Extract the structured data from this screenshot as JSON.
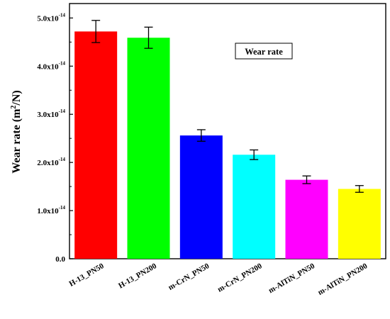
{
  "chart_data": {
    "type": "bar",
    "title": "",
    "xlabel": "",
    "ylabel": {
      "main": "Wear rate (m",
      "sup": "2",
      "tail": "/N)"
    },
    "ylim": [
      0,
      5.3
    ],
    "tick_values": [
      0.0,
      1.0,
      2.0,
      3.0,
      4.0,
      5.0
    ],
    "tick_labels": [
      {
        "base": "0.0",
        "exp": ""
      },
      {
        "base": "1.0x10",
        "exp": "-14"
      },
      {
        "base": "2.0x10",
        "exp": "-14"
      },
      {
        "base": "3.0x10",
        "exp": "-14"
      },
      {
        "base": "4.0x10",
        "exp": "-14"
      },
      {
        "base": "5.0x10",
        "exp": "-14"
      }
    ],
    "categories": [
      "H-13_PN50",
      "H-13_PN200",
      "m-CrN_PN50",
      "m-CrN_PN200",
      "m-AlTiN_PN50",
      "m-AlTiN_PN200"
    ],
    "values": [
      4.72,
      4.59,
      2.56,
      2.16,
      1.64,
      1.45
    ],
    "errors": [
      0.23,
      0.22,
      0.12,
      0.1,
      0.08,
      0.07
    ],
    "colors": [
      "#ff0000",
      "#00ff00",
      "#0000ff",
      "#00ffff",
      "#ff00ff",
      "#ffff00"
    ],
    "legend": {
      "text": "Wear rate",
      "placement": "top-right"
    },
    "grid": false
  }
}
